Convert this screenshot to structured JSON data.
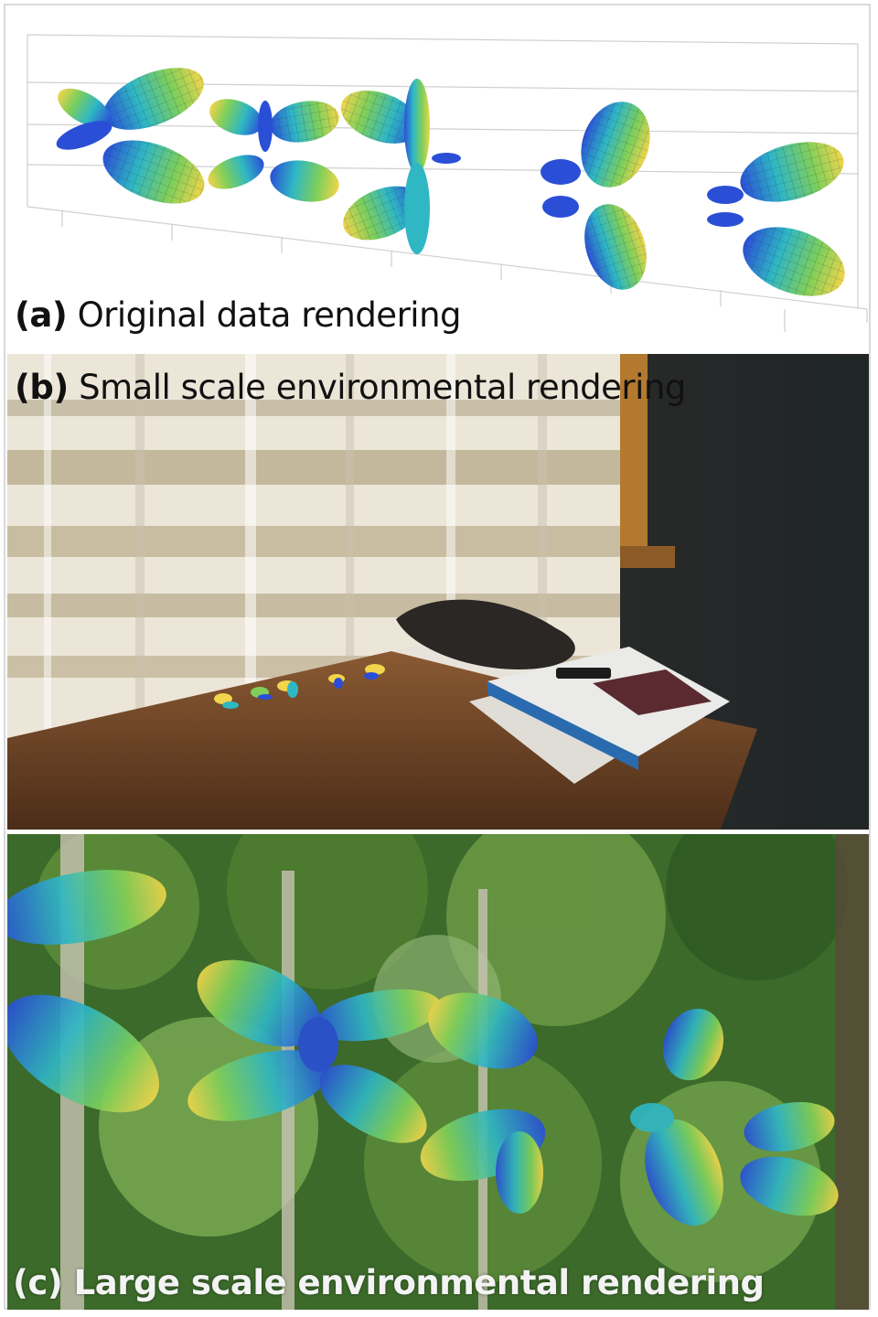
{
  "panels": {
    "a": {
      "label": "(a)",
      "title": "Original data rendering"
    },
    "b": {
      "label": "(b)",
      "title": "Small scale environmental rendering"
    },
    "c": {
      "label": "(c)",
      "title": "Large scale environmental rendering"
    }
  },
  "colors": {
    "lobe_blue": "#2a4fd6",
    "lobe_cyan": "#2fb7c4",
    "lobe_green": "#7fcf5a",
    "lobe_yellow": "#f1d54b",
    "grid": "#d0d0d0",
    "table_wood": "#7a4a2a",
    "curtain": "#ece6d8",
    "forest": "#3c6a2a"
  }
}
